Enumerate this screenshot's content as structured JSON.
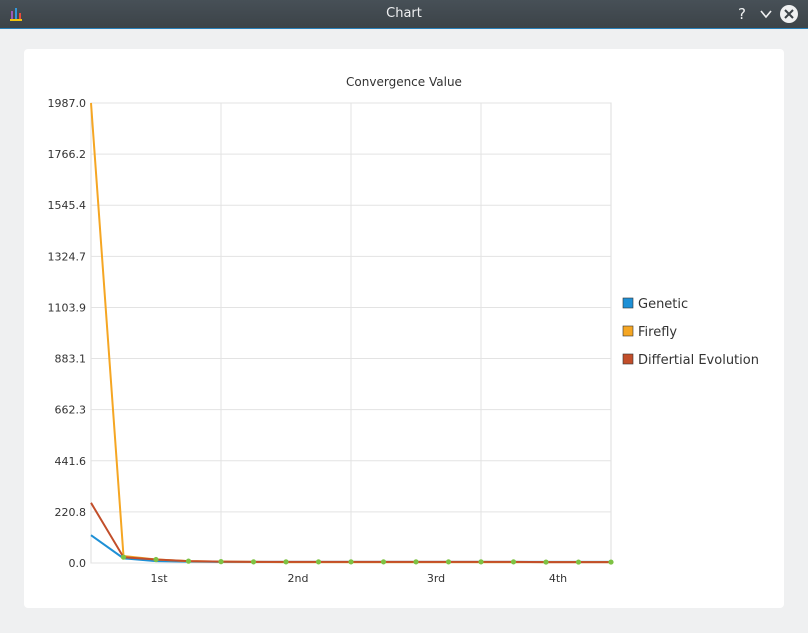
{
  "window": {
    "title": "Chart",
    "help_label": "?",
    "app_icon": "chart-app-icon",
    "min_icon": "chevron-down-icon",
    "close_icon": "close-icon"
  },
  "chart_data": {
    "type": "line",
    "title": "Convergence Value",
    "xlabel": "",
    "ylabel": "",
    "ylim": [
      0.0,
      1987.0
    ],
    "y_ticks": [
      "1987.0",
      "1766.2",
      "1545.4",
      "1324.7",
      "1103.9",
      "883.1",
      "662.3",
      "441.6",
      "220.8",
      "0.0"
    ],
    "x_categories": [
      "1st",
      "2nd",
      "3rd",
      "4th"
    ],
    "grid": true,
    "legend_position": "right",
    "series": [
      {
        "name": "Genetic",
        "color": "#1e90d6",
        "x": [
          0,
          1,
          2,
          3,
          4,
          5,
          6,
          7,
          8,
          9,
          10,
          11,
          12,
          13,
          14,
          15,
          16
        ],
        "values": [
          120,
          20,
          8,
          6,
          5,
          5,
          5,
          5,
          5,
          5,
          5,
          5,
          5,
          5,
          5,
          5,
          5
        ]
      },
      {
        "name": "Firefly",
        "color": "#f5a623",
        "x": [
          0,
          1,
          2,
          3,
          4,
          5,
          6,
          7,
          8,
          9,
          10,
          11,
          12,
          13,
          14,
          15,
          16
        ],
        "values": [
          1987,
          30,
          15,
          8,
          6,
          5,
          4,
          4,
          4,
          4,
          4,
          4,
          4,
          4,
          4,
          4,
          4
        ]
      },
      {
        "name": "Differtial Evolution",
        "color": "#c24e2a",
        "x": [
          0,
          1,
          2,
          3,
          4,
          5,
          6,
          7,
          8,
          9,
          10,
          11,
          12,
          13,
          14,
          15,
          16
        ],
        "values": [
          260,
          25,
          15,
          8,
          6,
          5,
          5,
          5,
          5,
          5,
          5,
          5,
          5,
          5,
          4,
          4,
          4
        ]
      }
    ],
    "marker_color": "#7dc243"
  }
}
